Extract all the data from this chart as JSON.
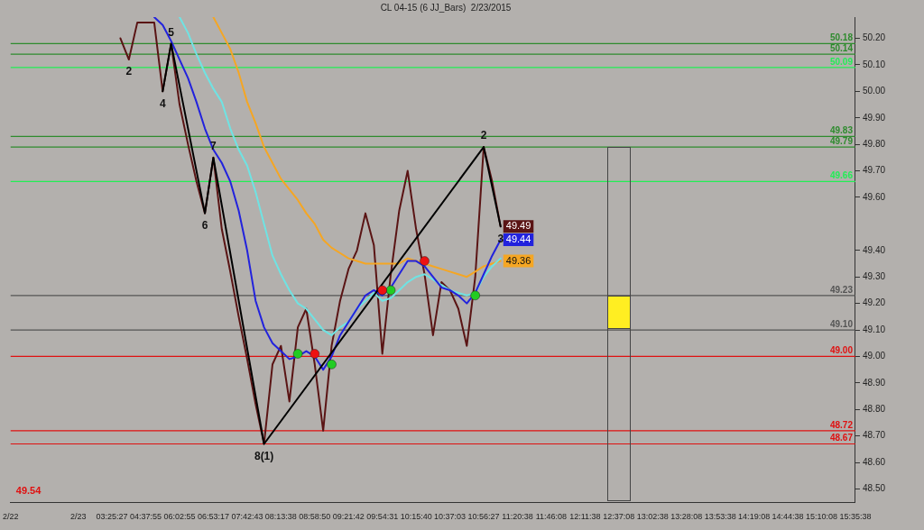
{
  "chart_data": {
    "type": "line",
    "title": "CL 04-15 (6 JJ_Bars)  2/23/2015",
    "categories": [
      "2/22",
      null,
      null,
      null,
      null,
      null,
      null,
      null,
      "2/23",
      null,
      null,
      null,
      "03:25:27",
      null,
      null,
      null,
      "04:37:55",
      null,
      null,
      null,
      "06:02:55",
      null,
      null,
      null,
      "06:53:17",
      null,
      null,
      null,
      "07:42:43",
      null,
      null,
      null,
      "08:13:38",
      null,
      null,
      null,
      "08:58:50",
      null,
      null,
      null,
      "09:21:42",
      null,
      null,
      null,
      "09:54:31",
      null,
      null,
      null,
      "10:15:40",
      null,
      null,
      null,
      "10:37:03",
      null,
      null,
      null,
      "10:56:27",
      null,
      null,
      null,
      "11:20:38",
      null,
      null,
      null,
      "11:46:08",
      null,
      null,
      null,
      "12:11:38",
      null,
      null,
      null,
      "12:37:08",
      null,
      null,
      null,
      "13:02:38",
      null,
      null,
      null,
      "13:28:08",
      null,
      null,
      null,
      "13:53:38",
      null,
      null,
      null,
      "14:19:08",
      null,
      null,
      null,
      "14:44:38",
      null,
      null,
      null,
      "15:10:08",
      null,
      null,
      null,
      "15:35:38"
    ],
    "ylim": [
      48.45,
      50.28
    ],
    "yticks": [
      {
        "value": 48.5,
        "label": "48.50"
      },
      {
        "value": 48.6,
        "label": "48.60"
      },
      {
        "value": 48.7,
        "label": "48.70"
      },
      {
        "value": 48.8,
        "label": "48.80"
      },
      {
        "value": 48.9,
        "label": "48.90"
      },
      {
        "value": 49.0,
        "label": "49.00"
      },
      {
        "value": 49.1,
        "label": "49.10"
      },
      {
        "value": 49.2,
        "label": "49.20"
      },
      {
        "value": 49.3,
        "label": "49.30"
      },
      {
        "value": 49.4,
        "label": "49.40"
      },
      {
        "value": 49.6,
        "label": "49.60"
      },
      {
        "value": 49.7,
        "label": "49.70"
      },
      {
        "value": 49.8,
        "label": "49.80"
      },
      {
        "value": 49.9,
        "label": "49.90"
      },
      {
        "value": 50.0,
        "label": "50.00"
      },
      {
        "value": 50.1,
        "label": "50.10"
      },
      {
        "value": 50.2,
        "label": "50.20"
      }
    ],
    "grid": false,
    "legend": false,
    "marker": "none",
    "line_style": "solid",
    "series": [
      {
        "color": "#5a1414",
        "values": [
          null,
          null,
          null,
          null,
          null,
          null,
          null,
          null,
          null,
          null,
          null,
          null,
          null,
          50.2,
          50.12,
          50.26,
          null,
          50.26,
          50.0,
          50.18,
          49.95,
          49.8,
          49.66,
          49.54,
          49.75,
          49.48,
          49.32,
          49.15,
          48.99,
          48.82,
          48.67,
          48.97,
          49.04,
          48.83,
          49.11,
          49.18,
          48.97,
          48.72,
          49.04,
          49.21,
          49.33,
          49.4,
          49.54,
          49.42,
          49.01,
          49.31,
          49.55,
          49.7,
          49.48,
          49.31,
          49.08,
          49.28,
          49.25,
          49.18,
          49.04,
          49.3,
          49.79,
          49.66,
          49.49,
          null,
          null,
          null,
          null,
          null,
          null,
          null,
          null,
          null,
          null,
          null,
          null,
          null,
          null,
          null,
          null,
          null,
          null,
          null,
          null,
          null,
          null,
          null,
          null,
          null,
          null,
          null,
          null,
          null,
          null,
          null,
          null,
          null,
          null,
          null,
          null,
          null,
          null,
          null,
          null,
          null,
          null
        ],
        "value_labels": [
          null,
          null,
          null,
          null,
          null,
          null,
          null,
          null,
          null,
          null,
          null,
          null,
          null,
          null,
          null,
          null,
          null,
          null,
          null,
          null,
          null,
          null,
          null,
          null,
          null,
          null,
          null,
          null,
          null,
          null,
          null,
          null,
          null,
          null,
          null,
          null,
          null,
          null,
          null,
          null,
          null,
          null,
          null,
          null,
          null,
          null,
          null,
          null,
          null,
          null,
          null,
          null,
          null,
          null,
          null,
          null,
          null,
          null,
          "49.49",
          null,
          null,
          null,
          null,
          null,
          null,
          null,
          null,
          null,
          null,
          null,
          null,
          null,
          null,
          null,
          null,
          null,
          null,
          null,
          null,
          null,
          null,
          null,
          null,
          null,
          null,
          null,
          null,
          null,
          null,
          null,
          null,
          null,
          null,
          null,
          null,
          null,
          null,
          null,
          null,
          null,
          null
        ]
      },
      {
        "color": "#f5a623",
        "values": [
          null,
          null,
          null,
          null,
          null,
          null,
          null,
          null,
          null,
          null,
          null,
          null,
          null,
          null,
          null,
          null,
          null,
          null,
          null,
          null,
          null,
          null,
          null,
          null,
          50.28,
          50.22,
          50.16,
          50.07,
          49.96,
          49.88,
          49.79,
          49.73,
          49.67,
          49.63,
          49.59,
          49.54,
          49.5,
          49.44,
          49.41,
          49.39,
          49.37,
          49.36,
          49.35,
          49.35,
          49.35,
          49.35,
          49.35,
          49.37,
          49.36,
          49.35,
          49.34,
          49.33,
          49.32,
          49.31,
          49.3,
          49.32,
          49.34,
          49.35,
          49.36,
          null,
          null,
          null,
          null,
          null,
          null,
          null,
          null,
          null,
          null,
          null,
          null,
          null,
          null,
          null,
          null,
          null,
          null,
          null,
          null,
          null,
          null,
          null,
          null,
          null,
          null,
          null,
          null,
          null,
          null,
          null,
          null,
          null,
          null,
          null,
          null,
          null,
          null,
          null,
          null,
          null,
          null
        ],
        "value_labels": [
          null,
          null,
          null,
          null,
          null,
          null,
          null,
          null,
          null,
          null,
          null,
          null,
          null,
          null,
          null,
          null,
          null,
          null,
          null,
          null,
          null,
          null,
          null,
          null,
          null,
          null,
          null,
          null,
          null,
          null,
          null,
          null,
          null,
          null,
          null,
          null,
          null,
          null,
          null,
          null,
          null,
          null,
          null,
          null,
          null,
          null,
          null,
          null,
          null,
          null,
          null,
          null,
          null,
          null,
          null,
          null,
          null,
          null,
          "49.36",
          null,
          null,
          null,
          null,
          null,
          null,
          null,
          null,
          null,
          null,
          null,
          null,
          null,
          null,
          null,
          null,
          null,
          null,
          null,
          null,
          null,
          null,
          null,
          null,
          null,
          null,
          null,
          null,
          null,
          null,
          null,
          null,
          null,
          null,
          null,
          null,
          null,
          null,
          null,
          null,
          null,
          null
        ]
      },
      {
        "color": "#6fe3e3",
        "values": [
          null,
          null,
          null,
          null,
          null,
          null,
          null,
          null,
          null,
          null,
          null,
          null,
          null,
          null,
          null,
          null,
          null,
          null,
          null,
          null,
          50.28,
          50.22,
          50.14,
          50.07,
          50.01,
          49.96,
          49.86,
          49.78,
          49.72,
          49.62,
          49.5,
          49.38,
          49.31,
          49.25,
          49.2,
          49.18,
          49.14,
          49.1,
          49.08,
          49.11,
          49.13,
          49.18,
          49.21,
          49.24,
          49.21,
          49.22,
          49.25,
          49.28,
          49.3,
          49.31,
          49.29,
          49.27,
          49.25,
          49.24,
          49.23,
          49.24,
          49.3,
          49.34,
          49.37,
          null,
          null,
          null,
          null,
          null,
          null,
          null,
          null,
          null,
          null,
          null,
          null,
          null,
          null,
          null,
          null,
          null,
          null,
          null,
          null,
          null,
          null,
          null,
          null,
          null,
          null,
          null,
          null,
          null,
          null,
          null,
          null,
          null,
          null,
          null,
          null,
          null,
          null,
          null,
          null,
          null,
          null
        ]
      },
      {
        "color": "#2222dd",
        "values": [
          null,
          null,
          null,
          null,
          null,
          null,
          null,
          null,
          null,
          null,
          null,
          null,
          null,
          null,
          null,
          null,
          null,
          50.28,
          50.25,
          50.19,
          50.12,
          50.05,
          49.96,
          49.86,
          49.78,
          49.73,
          49.66,
          49.55,
          49.4,
          49.21,
          49.11,
          49.05,
          49.02,
          48.99,
          49.0,
          49.02,
          49.0,
          48.95,
          49.0,
          49.08,
          49.13,
          49.18,
          49.23,
          49.25,
          49.23,
          49.26,
          49.31,
          49.36,
          49.36,
          49.34,
          49.3,
          49.26,
          49.25,
          49.23,
          49.2,
          49.24,
          49.31,
          49.38,
          49.44,
          null,
          null,
          null,
          null,
          null,
          null,
          null,
          null,
          null,
          null,
          null,
          null,
          null,
          null,
          null,
          null,
          null,
          null,
          null,
          null,
          null,
          null,
          null,
          null,
          null,
          null,
          null,
          null,
          null,
          null,
          null,
          null,
          null,
          null,
          null,
          null,
          null,
          null,
          null,
          null,
          null,
          null
        ],
        "value_labels": [
          null,
          null,
          null,
          null,
          null,
          null,
          null,
          null,
          null,
          null,
          null,
          null,
          null,
          null,
          null,
          null,
          null,
          null,
          null,
          null,
          null,
          null,
          null,
          null,
          null,
          null,
          null,
          null,
          null,
          null,
          null,
          null,
          null,
          null,
          null,
          null,
          null,
          null,
          null,
          null,
          null,
          null,
          null,
          null,
          null,
          null,
          null,
          null,
          null,
          null,
          null,
          null,
          null,
          null,
          null,
          null,
          null,
          null,
          "49.44",
          null,
          null,
          null,
          null,
          null,
          null,
          null,
          null,
          null,
          null,
          null,
          null,
          null,
          null,
          null,
          null,
          null,
          null,
          null,
          null,
          null,
          null,
          null,
          null,
          null,
          null,
          null,
          null,
          null,
          null,
          null,
          null,
          null,
          null,
          null,
          null,
          null,
          null,
          null,
          null,
          null,
          null
        ]
      },
      {
        "color": "#000000",
        "values": [
          null,
          null,
          null,
          null,
          null,
          null,
          null,
          null,
          null,
          null,
          null,
          null,
          null,
          null,
          null,
          null,
          null,
          null,
          50.0,
          50.18,
          null,
          null,
          null,
          49.54,
          49.75,
          null,
          null,
          null,
          null,
          null,
          48.67,
          null,
          null,
          null,
          null,
          null,
          null,
          null,
          null,
          null,
          null,
          null,
          null,
          null,
          null,
          null,
          null,
          null,
          null,
          null,
          null,
          null,
          null,
          null,
          null,
          null,
          49.79,
          null,
          49.49,
          null,
          null,
          null,
          null,
          null,
          null,
          null,
          null,
          null,
          null,
          null,
          null,
          null,
          null,
          null,
          null,
          null,
          null,
          null,
          null,
          null,
          null,
          null,
          null,
          null,
          null,
          null,
          null,
          null,
          null,
          null,
          null,
          null,
          null,
          null,
          null,
          null,
          null,
          null,
          null,
          null,
          null
        ]
      },
      {
        "type": "scatter",
        "marker": "circle",
        "color": "#22cc22",
        "values": [
          null,
          null,
          null,
          null,
          null,
          null,
          null,
          null,
          null,
          null,
          null,
          null,
          null,
          null,
          null,
          null,
          null,
          null,
          null,
          null,
          null,
          null,
          null,
          null,
          null,
          null,
          null,
          null,
          null,
          null,
          null,
          null,
          null,
          null,
          49.01,
          null,
          null,
          null,
          48.97,
          null,
          null,
          null,
          null,
          null,
          null,
          49.25,
          null,
          null,
          null,
          null,
          null,
          null,
          null,
          null,
          null,
          49.23,
          null,
          null,
          null,
          null,
          null,
          null,
          null,
          null,
          null,
          null,
          null,
          null,
          null,
          null,
          null,
          null,
          null,
          null,
          null,
          null,
          null,
          null,
          null,
          null,
          null,
          null,
          null,
          null,
          null,
          null,
          null,
          null,
          null,
          null,
          null,
          null,
          null,
          null,
          null,
          null,
          null,
          null,
          null,
          null,
          null
        ]
      },
      {
        "type": "scatter",
        "marker": "circle",
        "color": "#ee1111",
        "values": [
          null,
          null,
          null,
          null,
          null,
          null,
          null,
          null,
          null,
          null,
          null,
          null,
          null,
          null,
          null,
          null,
          null,
          null,
          null,
          null,
          null,
          null,
          null,
          null,
          null,
          null,
          null,
          null,
          null,
          null,
          null,
          null,
          null,
          null,
          null,
          null,
          49.01,
          null,
          null,
          null,
          null,
          null,
          null,
          null,
          49.25,
          null,
          null,
          null,
          null,
          49.36,
          null,
          null,
          null,
          null,
          null,
          null,
          null,
          null,
          null,
          null,
          null,
          null,
          null,
          null,
          null,
          null,
          null,
          null,
          null,
          null,
          null,
          null,
          null,
          null,
          null,
          null,
          null,
          null,
          null,
          null,
          null,
          null,
          null,
          null,
          null,
          null,
          null,
          null,
          null,
          null,
          null,
          null,
          null,
          null,
          null,
          null,
          null,
          null,
          null,
          null,
          null
        ]
      }
    ],
    "ref_lines": [
      {
        "axis": "y",
        "value": 50.18,
        "label": "50.18",
        "color": "#2e8b2e"
      },
      {
        "axis": "y",
        "value": 50.14,
        "label": "50.14",
        "color": "#2e8b2e"
      },
      {
        "axis": "y",
        "value": 50.09,
        "label": "50.09",
        "color": "#22ee55"
      },
      {
        "axis": "y",
        "value": 49.83,
        "label": "49.83",
        "color": "#2e8b2e"
      },
      {
        "axis": "y",
        "value": 49.79,
        "label": "49.79",
        "color": "#2e8b2e"
      },
      {
        "axis": "y",
        "value": 49.66,
        "label": "49.66",
        "color": "#22ee55"
      },
      {
        "axis": "y",
        "value": 49.23,
        "label": "49.23",
        "color": "#555555"
      },
      {
        "axis": "y",
        "value": 49.1,
        "label": "49.10",
        "color": "#555555"
      },
      {
        "axis": "y",
        "value": 49.0,
        "label": "49.00",
        "color": "#e01010"
      },
      {
        "axis": "y",
        "value": 48.72,
        "label": "48.72",
        "color": "#e01010"
      },
      {
        "axis": "y",
        "value": 48.67,
        "label": "48.67",
        "color": "#e01010"
      }
    ],
    "annotations": [
      {
        "text": "2",
        "y": 50.12
      },
      {
        "text": "4",
        "y": 50.0
      },
      {
        "text": "5",
        "y": 50.18
      },
      {
        "text": "6",
        "y": 49.54
      },
      {
        "text": "7",
        "y": 49.75
      },
      {
        "text": "8(1)",
        "y": 48.67
      },
      {
        "text": "2",
        "y": 49.79
      },
      {
        "text": "3",
        "y": 49.49
      },
      "49.54"
    ]
  }
}
